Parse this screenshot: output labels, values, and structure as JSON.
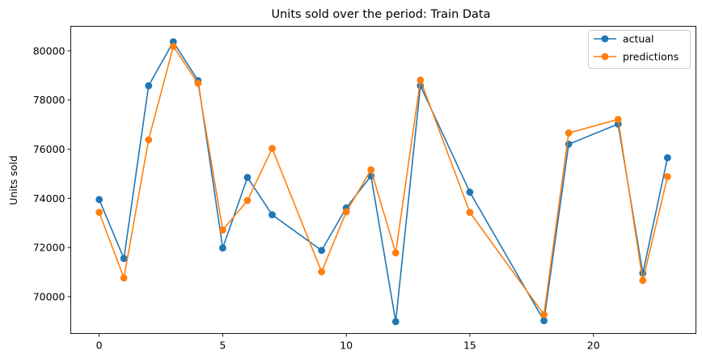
{
  "chart_data": {
    "type": "line",
    "title": "Units sold over the period: Train Data",
    "xlabel": "",
    "ylabel": "Units sold",
    "xlim": [
      -1.15,
      24.15
    ],
    "ylim": [
      68500,
      81000
    ],
    "xticks": [
      0,
      5,
      10,
      15,
      20
    ],
    "yticks": [
      70000,
      72000,
      74000,
      76000,
      78000,
      80000
    ],
    "grid": false,
    "legend_position": "top-right",
    "x": [
      0,
      1,
      2,
      3,
      4,
      5,
      6,
      7,
      9,
      10,
      11,
      12,
      13,
      15,
      18,
      19,
      21,
      22,
      23
    ],
    "series": [
      {
        "name": "actual",
        "color": "#1f77b4",
        "values": [
          73950,
          71550,
          78580,
          80370,
          78790,
          71980,
          74850,
          73330,
          71880,
          73610,
          74910,
          68980,
          78580,
          74250,
          69020,
          76200,
          77020,
          70950,
          75650
        ]
      },
      {
        "name": "predictions",
        "color": "#ff7f0e",
        "values": [
          73430,
          70760,
          76380,
          80180,
          78680,
          72710,
          73910,
          76030,
          71010,
          73450,
          75160,
          71780,
          78810,
          73430,
          69270,
          76660,
          77210,
          70660,
          74880
        ]
      }
    ]
  }
}
